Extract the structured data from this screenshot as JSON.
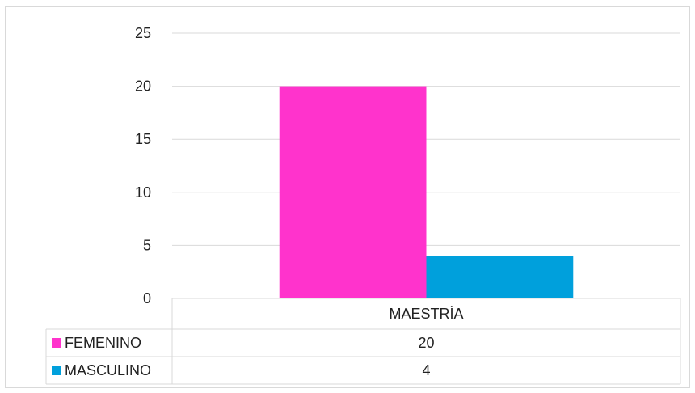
{
  "chart_data": {
    "type": "bar",
    "categories": [
      "MAESTRÍA"
    ],
    "series": [
      {
        "name": "FEMENINO",
        "values": [
          20
        ],
        "color": "#ff33cc"
      },
      {
        "name": "MASCULINO",
        "values": [
          4
        ],
        "color": "#00a0dc"
      }
    ],
    "ylim": [
      0,
      25
    ],
    "yticks": [
      0,
      5,
      10,
      15,
      20,
      25
    ],
    "grid": true,
    "legend": "data-table"
  }
}
